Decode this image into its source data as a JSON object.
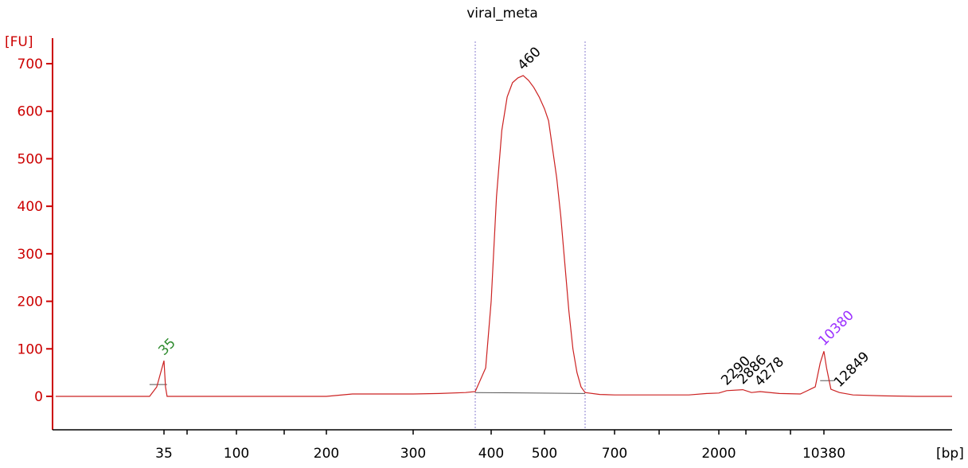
{
  "chart_data": {
    "type": "line",
    "title": "viral_meta",
    "ylabel": "[FU]",
    "xlabel": "[bp]",
    "ylim": [
      -70,
      740
    ],
    "y_ticks": [
      0,
      100,
      200,
      300,
      400,
      500,
      600,
      700
    ],
    "y_tick_labels": [
      "0",
      "100",
      "200",
      "300",
      "400",
      "500",
      "600",
      "700"
    ],
    "x_tick_labels": [
      "35",
      "100",
      "200",
      "300",
      "400",
      "500",
      "700",
      "2000",
      "10380"
    ],
    "x_unlabeled_ticks": [
      "50",
      "150",
      "1000",
      "3000",
      "7000"
    ],
    "x_units_label": "[bp]",
    "peaks": [
      {
        "label": "35",
        "bp": 35,
        "fu": 75,
        "color": "#2e8b2e"
      },
      {
        "label": "460",
        "bp": 460,
        "fu": 675,
        "color": "#000000"
      },
      {
        "label": "2290",
        "bp": 2290,
        "fu": 12,
        "color": "#000000"
      },
      {
        "label": "2886",
        "bp": 2886,
        "fu": 14,
        "color": "#000000"
      },
      {
        "label": "4278",
        "bp": 4278,
        "fu": 10,
        "color": "#000000"
      },
      {
        "label": "10380",
        "bp": 10380,
        "fu": 95,
        "color": "#9b30ff"
      },
      {
        "label": "12849",
        "bp": 12849,
        "fu": 8,
        "color": "#000000"
      }
    ],
    "region_markers_bp": [
      371,
      600
    ],
    "series": [
      {
        "color": "#cc2222",
        "points": [
          [
            20,
            0
          ],
          [
            33,
            0
          ],
          [
            34,
            20
          ],
          [
            35,
            75
          ],
          [
            36,
            20
          ],
          [
            37,
            0
          ],
          [
            50,
            0
          ],
          [
            200,
            0
          ],
          [
            230,
            5
          ],
          [
            300,
            5
          ],
          [
            330,
            6
          ],
          [
            360,
            8
          ],
          [
            371,
            10
          ],
          [
            390,
            60
          ],
          [
            400,
            200
          ],
          [
            410,
            420
          ],
          [
            420,
            560
          ],
          [
            430,
            630
          ],
          [
            440,
            660
          ],
          [
            450,
            670
          ],
          [
            460,
            675
          ],
          [
            470,
            665
          ],
          [
            480,
            650
          ],
          [
            490,
            630
          ],
          [
            500,
            605
          ],
          [
            510,
            580
          ],
          [
            520,
            520
          ],
          [
            530,
            460
          ],
          [
            540,
            380
          ],
          [
            550,
            280
          ],
          [
            560,
            180
          ],
          [
            570,
            100
          ],
          [
            580,
            50
          ],
          [
            590,
            20
          ],
          [
            600,
            8
          ],
          [
            650,
            4
          ],
          [
            700,
            3
          ],
          [
            1000,
            3
          ],
          [
            1500,
            3
          ],
          [
            1800,
            6
          ],
          [
            2000,
            7
          ],
          [
            2290,
            12
          ],
          [
            2886,
            14
          ],
          [
            3500,
            8
          ],
          [
            4278,
            10
          ],
          [
            6000,
            6
          ],
          [
            8000,
            5
          ],
          [
            9500,
            20
          ],
          [
            10000,
            70
          ],
          [
            10380,
            95
          ],
          [
            10800,
            60
          ],
          [
            11500,
            15
          ],
          [
            12849,
            8
          ],
          [
            15000,
            3
          ],
          [
            20000,
            1
          ],
          [
            25000,
            0
          ],
          [
            30000,
            0
          ]
        ]
      }
    ],
    "grid": false,
    "legend": "none"
  },
  "colors": {
    "axis": "#cc0000",
    "trace": "#cc2222",
    "marker": "#8a7ccf",
    "baseline": "#555555"
  }
}
